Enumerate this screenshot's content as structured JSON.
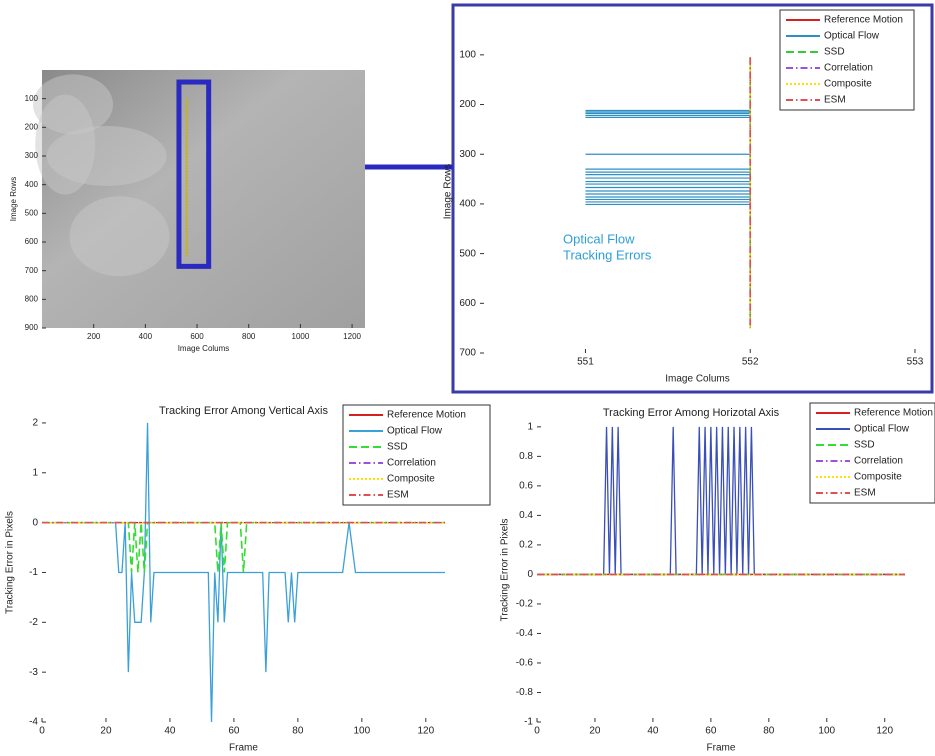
{
  "chart_data": [
    {
      "type": "image",
      "xlabel": "Image Colums",
      "ylabel": "Image Rows",
      "xlim": [
        0,
        1250
      ],
      "ylim": [
        0,
        900
      ],
      "y_reversed": true,
      "xticks": [
        200,
        400,
        600,
        800,
        1000,
        1200
      ],
      "yticks": [
        100,
        200,
        300,
        400,
        500,
        600,
        700,
        800,
        900
      ],
      "highlight": {
        "x": [
          530,
          645
        ],
        "y": [
          42,
          685
        ],
        "color": "#2a2ac0"
      },
      "track": {
        "x": 560,
        "y": [
          100,
          650
        ],
        "color": "#c8b400"
      }
    },
    {
      "type": "line",
      "xlabel": "Image Colums",
      "ylabel": "Image Rows",
      "xlim": [
        550.36,
        553
      ],
      "ylim": [
        50,
        700
      ],
      "y_reversed": true,
      "xticks": [
        551,
        552,
        553
      ],
      "yticks": [
        100,
        200,
        300,
        400,
        500,
        600,
        700
      ],
      "annotation": [
        "Optical Flow",
        "Tracking Errors"
      ],
      "annotation_color": "#2e9fd6",
      "legend": "upper right",
      "series": [
        {
          "name": "Reference Motion",
          "color": "#d62020",
          "style": "solid",
          "x": [
            552,
            552
          ],
          "values": [
            105,
            650
          ]
        },
        {
          "name": "Optical Flow",
          "color": "#2e8fc4",
          "style": "solid",
          "x": [
            551,
            552
          ],
          "rows": [
            212,
            215,
            218,
            222,
            226,
            300,
            330,
            336,
            341,
            348,
            355,
            360,
            367,
            374,
            380,
            386,
            391,
            396,
            401
          ]
        },
        {
          "name": "SSD",
          "color": "#33cc33",
          "style": "dashed",
          "x": [
            552,
            552
          ],
          "values": [
            105,
            650
          ]
        },
        {
          "name": "Correlation",
          "color": "#9a50e0",
          "style": "dashdot",
          "x": [
            552,
            552
          ],
          "values": [
            105,
            650
          ]
        },
        {
          "name": "Composite",
          "color": "#ffe000",
          "style": "dotted",
          "x": [
            552,
            552
          ],
          "values": [
            105,
            650
          ]
        },
        {
          "name": "ESM",
          "color": "#e05050",
          "style": "dashdot",
          "x": [
            552,
            552
          ],
          "values": [
            105,
            650
          ]
        }
      ]
    },
    {
      "type": "line",
      "title": "Tracking Error Among Vertical Axis",
      "xlabel": "Frame",
      "ylabel": "Tracking Error in Pixels",
      "xlim": [
        0,
        126
      ],
      "ylim": [
        -4,
        2.4
      ],
      "xticks": [
        0,
        20,
        40,
        60,
        80,
        100,
        120
      ],
      "yticks": [
        -4,
        -3,
        -2,
        -1,
        0,
        1,
        2
      ],
      "legend": "upper right",
      "series": [
        {
          "name": "Reference Motion",
          "color": "#d62020",
          "style": "solid",
          "x": [
            0,
            126
          ],
          "values": [
            0,
            0
          ]
        },
        {
          "name": "Optical Flow",
          "color": "#3aa0d8",
          "style": "solid",
          "x": [
            0,
            23,
            24,
            25,
            26,
            27,
            28,
            29,
            30,
            31,
            32,
            33,
            34,
            35,
            52,
            53,
            54,
            55,
            56,
            57,
            58,
            69,
            70,
            71,
            76,
            77,
            78,
            79,
            80,
            94,
            96,
            98,
            126
          ],
          "values": [
            0,
            0,
            -1,
            -1,
            0,
            -3,
            -1,
            -2,
            -2,
            -2,
            -1,
            2,
            -2,
            -1,
            -1,
            -4,
            -1,
            -2,
            0,
            -2,
            -1,
            -1,
            -3,
            -1,
            -1,
            -2,
            -1,
            -2,
            -1,
            -1,
            0,
            -1,
            -1
          ]
        },
        {
          "name": "SSD",
          "color": "#33dd33",
          "style": "dashed",
          "x": [
            0,
            27,
            28,
            29,
            30,
            31,
            32,
            33,
            54,
            55,
            56,
            57,
            58,
            62,
            63,
            64,
            126
          ],
          "values": [
            0,
            0,
            -1,
            0,
            -1,
            0,
            -1,
            0,
            0,
            -1,
            0,
            -1,
            0,
            0,
            -1,
            0,
            0
          ]
        },
        {
          "name": "Correlation",
          "color": "#9a50e0",
          "style": "dashdot",
          "x": [
            0,
            126
          ],
          "values": [
            0,
            0
          ]
        },
        {
          "name": "Composite",
          "color": "#ffe000",
          "style": "dotted",
          "x": [
            0,
            126
          ],
          "values": [
            0,
            0
          ]
        },
        {
          "name": "ESM",
          "color": "#e05050",
          "style": "dashdot",
          "x": [
            0,
            126
          ],
          "values": [
            0,
            0
          ]
        }
      ]
    },
    {
      "type": "line",
      "title": "Tracking Error Among Horizotal Axis",
      "xlabel": "Frame",
      "ylabel": "Tracking Error in Pixels",
      "xlim": [
        0,
        127
      ],
      "ylim": [
        -1,
        1.06
      ],
      "xticks": [
        0,
        20,
        40,
        60,
        80,
        100,
        120
      ],
      "yticks": [
        -1,
        -0.8,
        -0.6,
        -0.4,
        -0.2,
        0,
        0.2,
        0.4,
        0.6,
        0.8,
        1
      ],
      "legend": "upper right",
      "series": [
        {
          "name": "Reference Motion",
          "color": "#d62020",
          "style": "solid",
          "x": [
            0,
            127
          ],
          "values": [
            0,
            0
          ]
        },
        {
          "name": "Optical Flow",
          "color": "#3a4fb8",
          "style": "solid",
          "x": [
            0,
            23,
            24,
            25,
            26,
            27,
            28,
            29,
            46,
            47,
            48,
            55,
            56,
            57,
            58,
            59,
            60,
            61,
            62,
            63,
            64,
            65,
            66,
            67,
            68,
            69,
            70,
            71,
            72,
            73,
            74,
            75,
            127
          ],
          "values": [
            0,
            0,
            1,
            0,
            1,
            0,
            1,
            0,
            0,
            1,
            0,
            0,
            1,
            0,
            1,
            0,
            1,
            0,
            1,
            0,
            1,
            0,
            1,
            0,
            1,
            0,
            1,
            0,
            1,
            0,
            1,
            0,
            0
          ]
        },
        {
          "name": "SSD",
          "color": "#33dd33",
          "style": "dashed",
          "x": [
            0,
            127
          ],
          "values": [
            0,
            0
          ]
        },
        {
          "name": "Correlation",
          "color": "#9a50e0",
          "style": "dashdot",
          "x": [
            0,
            127
          ],
          "values": [
            0,
            0
          ]
        },
        {
          "name": "Composite",
          "color": "#ffe000",
          "style": "dotted",
          "x": [
            0,
            127
          ],
          "values": [
            0,
            0
          ]
        },
        {
          "name": "ESM",
          "color": "#e05050",
          "style": "dashdot",
          "x": [
            0,
            127
          ],
          "values": [
            0,
            0
          ]
        }
      ]
    }
  ]
}
